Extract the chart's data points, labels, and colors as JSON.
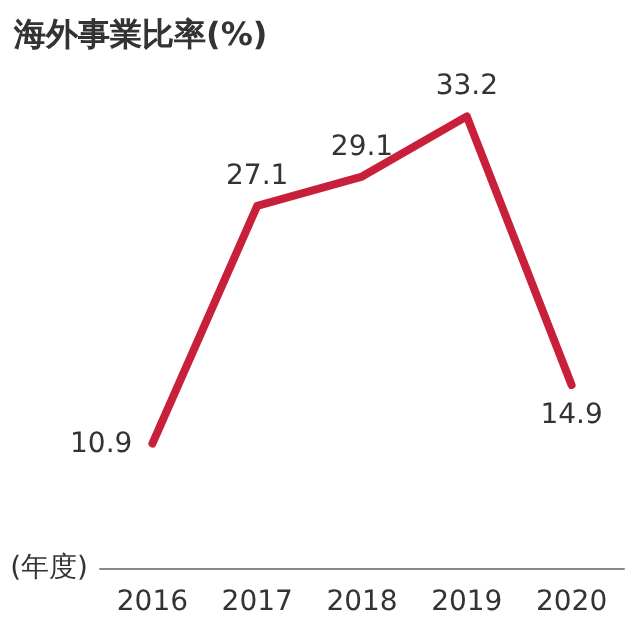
{
  "chart_data": {
    "type": "line",
    "title": "海外事業比率(%)",
    "xlabel": "(年度)",
    "categories": [
      "2016",
      "2017",
      "2018",
      "2019",
      "2020"
    ],
    "values": [
      10.9,
      27.1,
      29.1,
      33.2,
      14.9
    ],
    "color": "#c8203a",
    "data_labels": true,
    "grid": false,
    "marker": "none",
    "line_style": "solid",
    "tick_labels": "x"
  }
}
